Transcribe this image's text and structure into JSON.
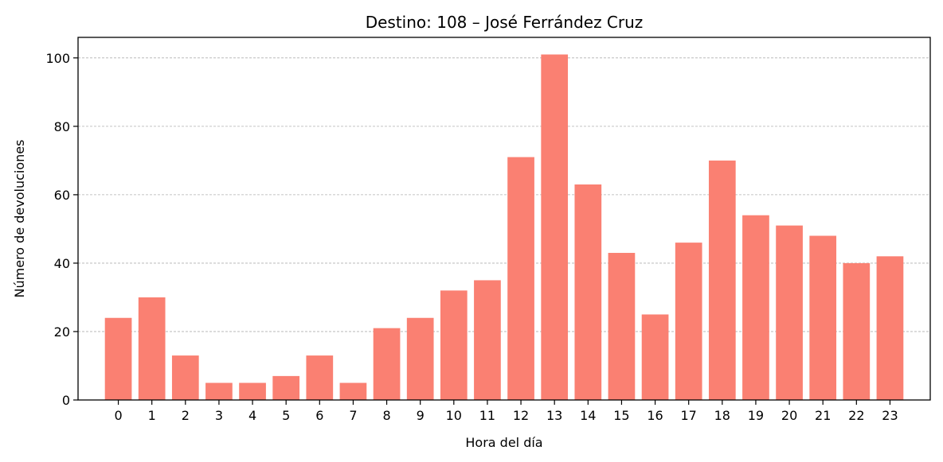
{
  "chart_data": {
    "type": "bar",
    "title": "Destino: 108 – José Ferrández Cruz",
    "xlabel": "Hora del día",
    "ylabel": "Número de devoluciones",
    "categories": [
      "0",
      "1",
      "2",
      "3",
      "4",
      "5",
      "6",
      "7",
      "8",
      "9",
      "10",
      "11",
      "12",
      "13",
      "14",
      "15",
      "16",
      "17",
      "18",
      "19",
      "20",
      "21",
      "22",
      "23"
    ],
    "values": [
      24,
      30,
      13,
      5,
      5,
      7,
      13,
      5,
      21,
      24,
      32,
      35,
      71,
      101,
      63,
      43,
      25,
      46,
      70,
      54,
      51,
      48,
      40,
      42
    ],
    "ylim": [
      0,
      106
    ],
    "yticks": [
      "0",
      "20",
      "40",
      "60",
      "80",
      "100"
    ],
    "grid": "horizontal dashed",
    "bar_color": "#fa8072"
  }
}
